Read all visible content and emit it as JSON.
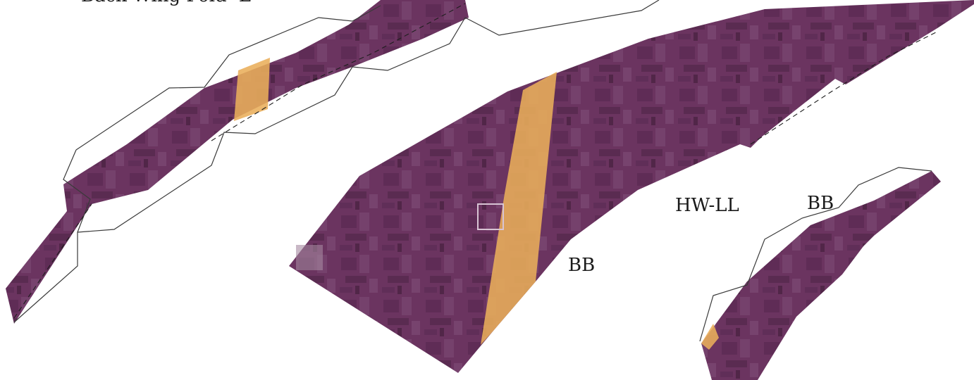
{
  "labels": {
    "top_title": "Back Wing Fold -L",
    "hw_ll": "HW-LL",
    "bb_center": "BB",
    "bb_right": "BB"
  },
  "colors": {
    "strip_fill": "#6b3460",
    "strip_dark": "#4f2447",
    "strip_light": "#8a5a82",
    "highlight_band": "#e9ae5a",
    "outline": "#3a3a3a",
    "background": "#ffffff"
  }
}
